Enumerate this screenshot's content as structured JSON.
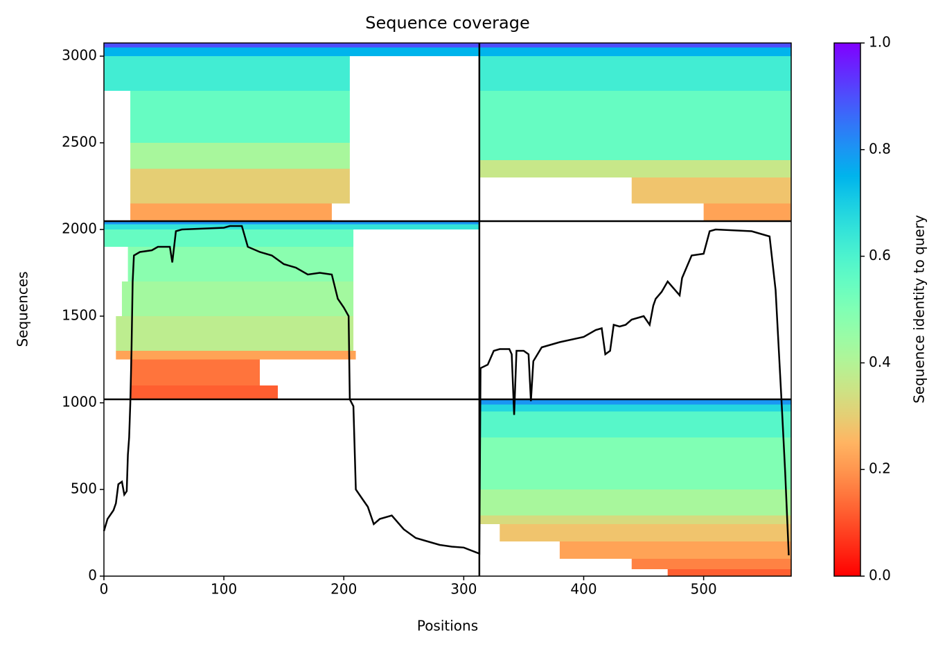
{
  "chart_data": {
    "type": "heatmap",
    "title": "Sequence coverage",
    "xlabel": "Positions",
    "ylabel": "Sequences",
    "colorbar_label": "Sequence identity to query",
    "xlim": [
      0,
      573
    ],
    "ylim": [
      0,
      3076
    ],
    "xticks": [
      0,
      100,
      200,
      300,
      400,
      500
    ],
    "yticks": [
      0,
      500,
      1000,
      1500,
      2000,
      2500,
      3000
    ],
    "clim": [
      0,
      1
    ],
    "cticks": [
      {
        "value": 0,
        "label": "0.0"
      },
      {
        "value": 0.2,
        "label": "0.2"
      },
      {
        "value": 0.4,
        "label": "0.4"
      },
      {
        "value": 0.6,
        "label": "0.6"
      },
      {
        "value": 0.8,
        "label": "0.8"
      },
      {
        "value": 1,
        "label": "1.0"
      }
    ],
    "colormap": "rainbow_r",
    "dividers": {
      "x": [
        313
      ],
      "y": [
        1020,
        2048
      ]
    },
    "strips": [
      {
        "x": [
          470,
          573
        ],
        "y": [
          0,
          40
        ],
        "identity": 0.12
      },
      {
        "x": [
          440,
          573
        ],
        "y": [
          40,
          100
        ],
        "identity": 0.17
      },
      {
        "x": [
          380,
          573
        ],
        "y": [
          100,
          200
        ],
        "identity": 0.22
      },
      {
        "x": [
          330,
          573
        ],
        "y": [
          200,
          300
        ],
        "identity": 0.28
      },
      {
        "x": [
          313,
          573
        ],
        "y": [
          300,
          350
        ],
        "identity": 0.33
      },
      {
        "x": [
          313,
          573
        ],
        "y": [
          350,
          500
        ],
        "identity": 0.42
      },
      {
        "x": [
          313,
          573
        ],
        "y": [
          500,
          800
        ],
        "identity": 0.5
      },
      {
        "x": [
          313,
          573
        ],
        "y": [
          800,
          950
        ],
        "identity": 0.58
      },
      {
        "x": [
          313,
          573
        ],
        "y": [
          950,
          990
        ],
        "identity": 0.68
      },
      {
        "x": [
          313,
          573
        ],
        "y": [
          990,
          1020
        ],
        "identity": 0.8
      },
      {
        "x": [
          22,
          145
        ],
        "y": [
          1020,
          1100
        ],
        "identity": 0.12
      },
      {
        "x": [
          22,
          130
        ],
        "y": [
          1100,
          1250
        ],
        "identity": 0.15
      },
      {
        "x": [
          10,
          210
        ],
        "y": [
          1250,
          1300
        ],
        "identity": 0.22
      },
      {
        "x": [
          10,
          208
        ],
        "y": [
          1300,
          1500
        ],
        "identity": 0.38
      },
      {
        "x": [
          15,
          208
        ],
        "y": [
          1500,
          1700
        ],
        "identity": 0.43
      },
      {
        "x": [
          20,
          208
        ],
        "y": [
          1700,
          1900
        ],
        "identity": 0.48
      },
      {
        "x": [
          0,
          208
        ],
        "y": [
          1900,
          2000
        ],
        "identity": 0.55
      },
      {
        "x": [
          0,
          313
        ],
        "y": [
          2000,
          2030
        ],
        "identity": 0.65
      },
      {
        "x": [
          0,
          313
        ],
        "y": [
          2030,
          2048
        ],
        "identity": 0.8
      },
      {
        "x": [
          22,
          190
        ],
        "y": [
          2048,
          2150
        ],
        "identity": 0.22
      },
      {
        "x": [
          22,
          205
        ],
        "y": [
          2150,
          2350
        ],
        "identity": 0.3
      },
      {
        "x": [
          22,
          205
        ],
        "y": [
          2350,
          2500
        ],
        "identity": 0.42
      },
      {
        "x": [
          22,
          205
        ],
        "y": [
          2500,
          2800
        ],
        "identity": 0.55
      },
      {
        "x": [
          0,
          205
        ],
        "y": [
          2800,
          3000
        ],
        "identity": 0.62
      },
      {
        "x": [
          0,
          313
        ],
        "y": [
          3000,
          3050
        ],
        "identity": 0.75
      },
      {
        "x": [
          0,
          313
        ],
        "y": [
          3050,
          3076
        ],
        "identity": 0.9
      },
      {
        "x": [
          500,
          573
        ],
        "y": [
          2048,
          2150
        ],
        "identity": 0.22
      },
      {
        "x": [
          440,
          573
        ],
        "y": [
          2150,
          2300
        ],
        "identity": 0.28
      },
      {
        "x": [
          313,
          573
        ],
        "y": [
          2300,
          2400
        ],
        "identity": 0.36
      },
      {
        "x": [
          313,
          573
        ],
        "y": [
          2400,
          2800
        ],
        "identity": 0.55
      },
      {
        "x": [
          313,
          573
        ],
        "y": [
          2800,
          3000
        ],
        "identity": 0.62
      },
      {
        "x": [
          313,
          573
        ],
        "y": [
          3000,
          3050
        ],
        "identity": 0.75
      },
      {
        "x": [
          313,
          573
        ],
        "y": [
          3050,
          3076
        ],
        "identity": 0.9
      }
    ],
    "line": {
      "color": "#000000",
      "x": [
        0,
        3,
        8,
        10,
        12,
        15,
        17,
        19,
        20,
        21,
        22,
        23,
        24,
        25,
        30,
        40,
        45,
        55,
        57,
        60,
        65,
        100,
        105,
        115,
        120,
        130,
        140,
        150,
        160,
        170,
        180,
        190,
        195,
        200,
        204,
        205,
        208,
        210,
        215,
        220,
        225,
        230,
        240,
        250,
        260,
        270,
        280,
        290,
        300,
        313,
        314,
        320,
        325,
        330,
        338,
        340,
        342,
        344,
        350,
        354,
        356,
        358,
        365,
        380,
        400,
        410,
        415,
        418,
        422,
        425,
        430,
        435,
        440,
        450,
        455,
        458,
        460,
        465,
        470,
        480,
        482,
        490,
        500,
        505,
        510,
        540,
        555,
        560,
        565,
        568,
        571
      ],
      "values": [
        260,
        330,
        380,
        420,
        530,
        545,
        470,
        490,
        700,
        800,
        1000,
        1300,
        1700,
        1850,
        1870,
        1880,
        1900,
        1900,
        1810,
        1990,
        2000,
        2010,
        2020,
        2020,
        1900,
        1870,
        1850,
        1800,
        1780,
        1740,
        1750,
        1740,
        1600,
        1550,
        1500,
        1020,
        980,
        500,
        450,
        400,
        300,
        330,
        350,
        270,
        220,
        200,
        180,
        170,
        165,
        130,
        1200,
        1220,
        1300,
        1310,
        1310,
        1280,
        930,
        1300,
        1300,
        1280,
        1010,
        1240,
        1320,
        1350,
        1380,
        1420,
        1430,
        1280,
        1300,
        1450,
        1440,
        1450,
        1480,
        1500,
        1450,
        1560,
        1600,
        1640,
        1700,
        1620,
        1720,
        1850,
        1860,
        1990,
        2000,
        1990,
        1960,
        1650,
        1000,
        600,
        120
      ]
    }
  }
}
